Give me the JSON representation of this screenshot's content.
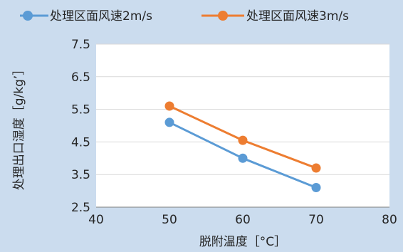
{
  "chart_data": {
    "type": "line",
    "title": "",
    "xlabel": "脱附温度［°C］",
    "ylabel": "处理出口湿度［g/kg’］",
    "xlim": [
      40,
      80
    ],
    "ylim": [
      2.5,
      7.5
    ],
    "x_ticks": [
      "40",
      "50",
      "60",
      "70",
      "80"
    ],
    "y_ticks": [
      "2.5",
      "3.5",
      "4.5",
      "5.5",
      "6.5",
      "7.5"
    ],
    "grid": "horizontal",
    "legend_position": "top",
    "x": [
      50,
      60,
      70
    ],
    "series": [
      {
        "name": "处理区面风速2m/s",
        "color": "#5b9bd5",
        "values": [
          5.1,
          4.0,
          3.1
        ]
      },
      {
        "name": "处理区面风速3m/s",
        "color": "#ed7d31",
        "values": [
          5.6,
          4.55,
          3.7
        ]
      }
    ]
  },
  "colors": {
    "background": "#cbdcee",
    "plot_area": "#ffffff",
    "gridline": "#d9d9d9",
    "axis_line": "#7f7f7f"
  }
}
